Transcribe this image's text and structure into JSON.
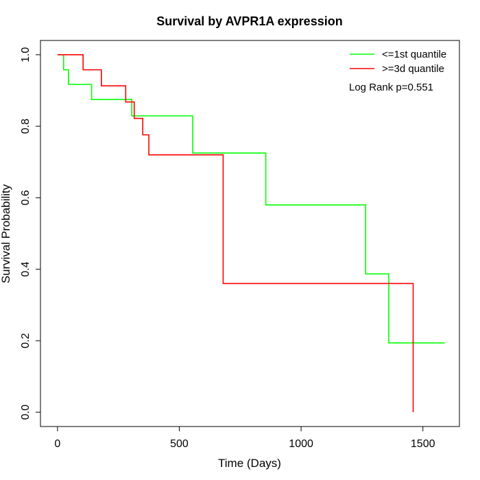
{
  "chart_data": {
    "type": "line",
    "title": "Survival by AVPR1A expression",
    "xlabel": "Time (Days)",
    "ylabel": "Survival Probability",
    "xlim": [
      -70,
      1650
    ],
    "ylim": [
      -0.04,
      1.04
    ],
    "x_ticks": [
      0,
      500,
      1000,
      1500
    ],
    "y_ticks": [
      0.0,
      0.2,
      0.4,
      0.6,
      0.8,
      1.0
    ],
    "x_tick_labels": [
      "0",
      "500",
      "1000",
      "1500"
    ],
    "y_tick_labels": [
      "0.0",
      "0.2",
      "0.4",
      "0.6",
      "0.8",
      "1.0"
    ],
    "legend_position": "top-right",
    "annotation": "Log Rank p=0.551",
    "series": [
      {
        "name": "<=1st quantile",
        "color": "#00ff00",
        "steps": [
          [
            0,
            1.0
          ],
          [
            25,
            0.958
          ],
          [
            45,
            0.917
          ],
          [
            140,
            0.875
          ],
          [
            305,
            0.829
          ],
          [
            555,
            0.829
          ],
          [
            555,
            0.725
          ],
          [
            855,
            0.725
          ],
          [
            855,
            0.58
          ],
          [
            1265,
            0.58
          ],
          [
            1265,
            0.387
          ],
          [
            1360,
            0.387
          ],
          [
            1360,
            0.194
          ],
          [
            1590,
            0.194
          ]
        ]
      },
      {
        "name": ">=3d quantile",
        "color": "#ff0000",
        "steps": [
          [
            0,
            1.0
          ],
          [
            105,
            0.958
          ],
          [
            180,
            0.913
          ],
          [
            280,
            0.868
          ],
          [
            315,
            0.822
          ],
          [
            350,
            0.776
          ],
          [
            375,
            0.72
          ],
          [
            680,
            0.72
          ],
          [
            680,
            0.36
          ],
          [
            1460,
            0.36
          ],
          [
            1460,
            0.0
          ]
        ]
      }
    ]
  }
}
